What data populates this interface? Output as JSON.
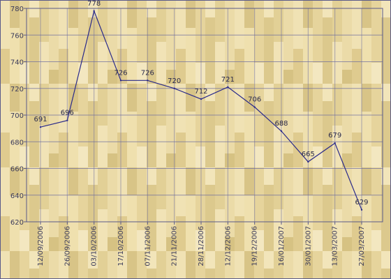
{
  "colors": {
    "background": "#e9d9a4",
    "plank_light": "#f1e4b8",
    "plank_dark": "#d9c688",
    "frame": "#5a5a8a",
    "grid": "#6a6aa0",
    "line": "#2a2a8a",
    "text": "#3a3a5a"
  },
  "chart_data": {
    "type": "line",
    "title": "",
    "xlabel": "",
    "ylabel": "",
    "categories": [
      "12/09/2006",
      "26/09/2006",
      "03/10/2006",
      "17/10/2006",
      "07/11/2006",
      "21/11/2006",
      "28/11/2006",
      "12/12/2006",
      "19/12/2006",
      "16/01/2007",
      "30/01/2007",
      "13/03/2007",
      "27/03/2007"
    ],
    "values": [
      691,
      696,
      778,
      726,
      726,
      720,
      712,
      721,
      706,
      688,
      665,
      679,
      629
    ],
    "data_labels": [
      "691",
      "696",
      "778",
      "726",
      "726",
      "720",
      "712",
      "721",
      "706",
      "688",
      "665",
      "679",
      "629"
    ],
    "yticks": [
      620,
      640,
      660,
      680,
      700,
      720,
      740,
      760,
      780
    ],
    "ytick_labels": [
      "620",
      "640",
      "660",
      "680",
      "700",
      "720",
      "740",
      "760",
      "780"
    ],
    "ylim": [
      620,
      780
    ],
    "grid": true,
    "legend": "none",
    "x_tick_rotation": "vertical"
  }
}
